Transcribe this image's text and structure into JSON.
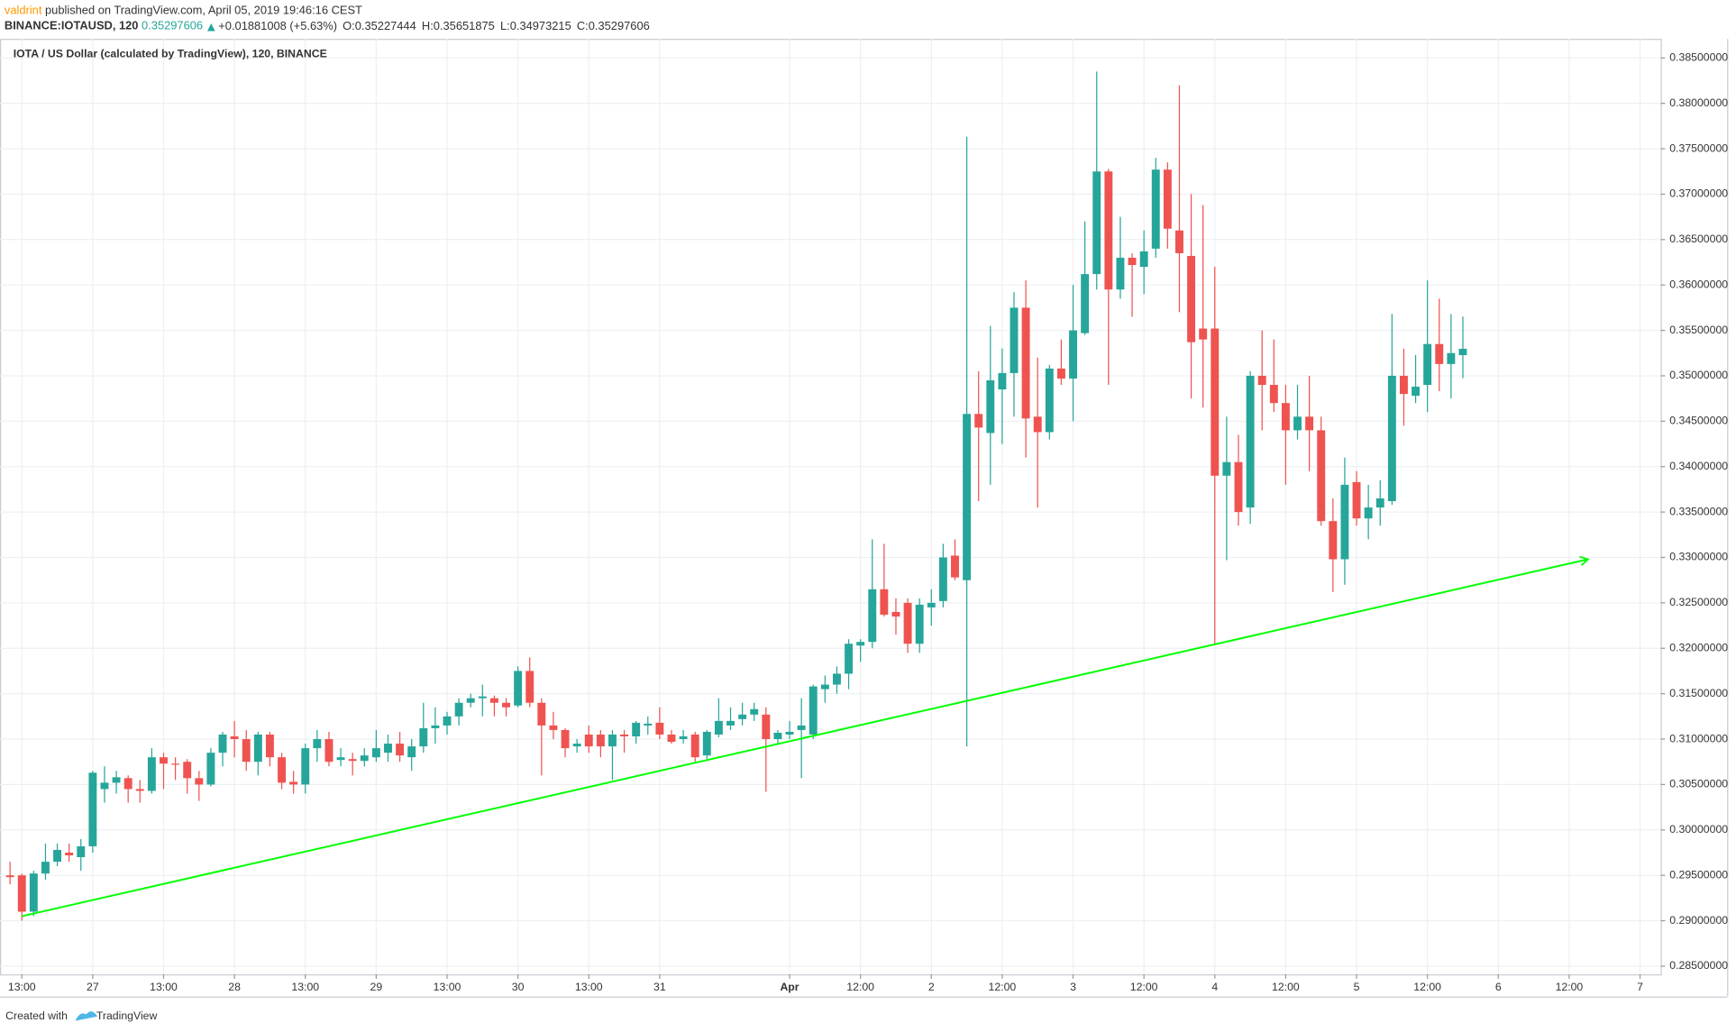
{
  "header": {
    "author": "valdrint",
    "published": "published on TradingView.com, April 05, 2019 19:46:16 CEST",
    "symbol": "BINANCE:IOTAUSD, 120",
    "last": "0.35297606",
    "change": "+0.01881008 (+5.63%)",
    "ohlc": [
      {
        "label": "O:",
        "value": "0.35227444"
      },
      {
        "label": "H:",
        "value": "0.35651875"
      },
      {
        "label": "L:",
        "value": "0.34973215"
      },
      {
        "label": "C:",
        "value": "0.35297606"
      }
    ]
  },
  "footer": {
    "created": "Created with",
    "brand": "TradingView"
  },
  "chart_data": {
    "type": "candlestick",
    "title": "IOTA / US Dollar (calculated by TradingView), 120, BINANCE",
    "up_color": "#26a69a",
    "down_color": "#ef5350",
    "grid": true,
    "xlim": [
      -0.85,
      139.75
    ],
    "ylim": [
      0.2841,
      0.3871
    ],
    "xticks": [
      {
        "value": 1,
        "label": "13:00"
      },
      {
        "value": 7,
        "label": "27"
      },
      {
        "value": 13,
        "label": "13:00"
      },
      {
        "value": 19,
        "label": "28"
      },
      {
        "value": 25,
        "label": "13:00"
      },
      {
        "value": 31,
        "label": "29"
      },
      {
        "value": 37,
        "label": "13:00"
      },
      {
        "value": 43,
        "label": "30"
      },
      {
        "value": 49,
        "label": "13:00"
      },
      {
        "value": 55,
        "label": "31"
      },
      {
        "value": 66,
        "label": "Apr"
      },
      {
        "value": 72,
        "label": "12:00"
      },
      {
        "value": 78,
        "label": "2"
      },
      {
        "value": 84,
        "label": "12:00"
      },
      {
        "value": 90,
        "label": "3"
      },
      {
        "value": 96,
        "label": "12:00"
      },
      {
        "value": 102,
        "label": "4"
      },
      {
        "value": 108,
        "label": "12:00"
      },
      {
        "value": 114,
        "label": "5"
      },
      {
        "value": 120,
        "label": "12:00"
      },
      {
        "value": 126,
        "label": "6"
      },
      {
        "value": 132,
        "label": "12:00"
      },
      {
        "value": 138,
        "label": "7"
      }
    ],
    "yticks": [
      {
        "value": 0.285,
        "label": "0.28500000"
      },
      {
        "value": 0.29,
        "label": "0.29000000"
      },
      {
        "value": 0.295,
        "label": "0.29500000"
      },
      {
        "value": 0.3,
        "label": "0.30000000"
      },
      {
        "value": 0.305,
        "label": "0.30500000"
      },
      {
        "value": 0.31,
        "label": "0.31000000"
      },
      {
        "value": 0.315,
        "label": "0.31500000"
      },
      {
        "value": 0.32,
        "label": "0.32000000"
      },
      {
        "value": 0.325,
        "label": "0.32500000"
      },
      {
        "value": 0.33,
        "label": "0.33000000"
      },
      {
        "value": 0.335,
        "label": "0.33500000"
      },
      {
        "value": 0.34,
        "label": "0.34000000"
      },
      {
        "value": 0.345,
        "label": "0.34500000"
      },
      {
        "value": 0.35,
        "label": "0.35000000"
      },
      {
        "value": 0.355,
        "label": "0.35500000"
      },
      {
        "value": 0.36,
        "label": "0.36000000"
      },
      {
        "value": 0.365,
        "label": "0.36500000"
      },
      {
        "value": 0.37,
        "label": "0.37000000"
      },
      {
        "value": 0.375,
        "label": "0.37500000"
      },
      {
        "value": 0.38,
        "label": "0.38000000"
      },
      {
        "value": 0.385,
        "label": "0.38500000"
      }
    ],
    "trendline": {
      "color": "#00ff00",
      "x": [
        1,
        133.6
      ],
      "y": [
        0.2905,
        0.3298
      ]
    },
    "open": [
      0.295,
      0.295,
      0.291,
      0.2952,
      0.2965,
      0.2975,
      0.297,
      0.2982,
      0.3045,
      0.3052,
      0.3057,
      0.3045,
      0.3043,
      0.308,
      0.3073,
      0.3075,
      0.3057,
      0.305,
      0.3085,
      0.3103,
      0.31,
      0.3075,
      0.3105,
      0.308,
      0.3053,
      0.305,
      0.309,
      0.31,
      0.3077,
      0.3078,
      0.3076,
      0.308,
      0.3085,
      0.3095,
      0.308,
      0.3092,
      0.3112,
      0.3115,
      0.3125,
      0.314,
      0.3145,
      0.3145,
      0.314,
      0.3137,
      0.3175,
      0.314,
      0.3115,
      0.311,
      0.3092,
      0.3105,
      0.3105,
      0.3092,
      0.3105,
      0.3103,
      0.3115,
      0.3118,
      0.3105,
      0.31,
      0.3105,
      0.3082,
      0.3105,
      0.3115,
      0.3122,
      0.3127,
      0.3127,
      0.31,
      0.3105,
      0.311,
      0.3105,
      0.3155,
      0.316,
      0.3172,
      0.3203,
      0.3207,
      0.3265,
      0.324,
      0.325,
      0.3205,
      0.3245,
      0.3252,
      0.3302,
      0.3275,
      0.3458,
      0.3437,
      0.3485,
      0.3503,
      0.3575,
      0.3455,
      0.3438,
      0.3508,
      0.3497,
      0.3547,
      0.3612,
      0.3725,
      0.3595,
      0.363,
      0.362,
      0.364,
      0.3727,
      0.366,
      0.3632,
      0.3552,
      0.3552,
      0.339,
      0.3405,
      0.3355,
      0.35,
      0.349,
      0.347,
      0.344,
      0.3455,
      0.344,
      0.334,
      0.3298,
      0.3383,
      0.3343,
      0.3355,
      0.3362,
      0.35,
      0.3478,
      0.349,
      0.3535,
      0.3513,
      0.35227444
    ],
    "high": [
      0.2965,
      0.2952,
      0.2955,
      0.2985,
      0.2985,
      0.2985,
      0.299,
      0.3065,
      0.307,
      0.3065,
      0.306,
      0.3055,
      0.309,
      0.3085,
      0.308,
      0.3078,
      0.3065,
      0.309,
      0.3108,
      0.312,
      0.311,
      0.3108,
      0.3108,
      0.3085,
      0.3065,
      0.3095,
      0.311,
      0.3108,
      0.309,
      0.3085,
      0.309,
      0.311,
      0.3105,
      0.3108,
      0.31,
      0.314,
      0.3135,
      0.313,
      0.3145,
      0.315,
      0.316,
      0.3148,
      0.3145,
      0.318,
      0.319,
      0.3145,
      0.313,
      0.3112,
      0.31,
      0.3115,
      0.311,
      0.311,
      0.311,
      0.312,
      0.3125,
      0.3135,
      0.311,
      0.311,
      0.3108,
      0.311,
      0.3145,
      0.3135,
      0.314,
      0.314,
      0.3135,
      0.311,
      0.312,
      0.3145,
      0.316,
      0.317,
      0.318,
      0.321,
      0.321,
      0.332,
      0.3315,
      0.3255,
      0.3255,
      0.3255,
      0.3265,
      0.3315,
      0.332,
      0.3763,
      0.3505,
      0.3555,
      0.353,
      0.3592,
      0.3605,
      0.352,
      0.3512,
      0.354,
      0.36,
      0.367,
      0.3835,
      0.3728,
      0.3675,
      0.3635,
      0.366,
      0.374,
      0.3735,
      0.382,
      0.37,
      0.3688,
      0.362,
      0.3455,
      0.3435,
      0.3505,
      0.355,
      0.354,
      0.349,
      0.349,
      0.35,
      0.3455,
      0.3365,
      0.341,
      0.3395,
      0.338,
      0.3385,
      0.3568,
      0.353,
      0.3523,
      0.3605,
      0.3585,
      0.3568,
      0.35651875
    ],
    "low": [
      0.294,
      0.29,
      0.2905,
      0.2945,
      0.296,
      0.2965,
      0.2955,
      0.2975,
      0.303,
      0.304,
      0.303,
      0.303,
      0.304,
      0.3045,
      0.3055,
      0.304,
      0.3032,
      0.3048,
      0.307,
      0.308,
      0.3065,
      0.306,
      0.307,
      0.3045,
      0.304,
      0.304,
      0.3075,
      0.307,
      0.307,
      0.306,
      0.307,
      0.3075,
      0.3075,
      0.3075,
      0.3065,
      0.3085,
      0.3095,
      0.3105,
      0.3115,
      0.3135,
      0.3125,
      0.3125,
      0.3125,
      0.3135,
      0.3135,
      0.306,
      0.31,
      0.308,
      0.3085,
      0.3085,
      0.308,
      0.3055,
      0.3085,
      0.3095,
      0.3105,
      0.31,
      0.3095,
      0.3095,
      0.3075,
      0.3078,
      0.3102,
      0.311,
      0.3115,
      0.312,
      0.3042,
      0.3095,
      0.31,
      0.3057,
      0.31,
      0.314,
      0.315,
      0.3155,
      0.3185,
      0.32,
      0.3235,
      0.3215,
      0.3195,
      0.3195,
      0.3225,
      0.3245,
      0.3275,
      0.3092,
      0.3362,
      0.338,
      0.3425,
      0.3455,
      0.341,
      0.3355,
      0.343,
      0.349,
      0.345,
      0.3545,
      0.3595,
      0.349,
      0.3585,
      0.3565,
      0.359,
      0.363,
      0.364,
      0.357,
      0.3475,
      0.3465,
      0.3205,
      0.3297,
      0.3335,
      0.3337,
      0.344,
      0.346,
      0.338,
      0.343,
      0.3395,
      0.3335,
      0.3262,
      0.327,
      0.3335,
      0.332,
      0.3335,
      0.3358,
      0.3445,
      0.347,
      0.346,
      0.3483,
      0.3475,
      0.34973215
    ],
    "close": [
      0.2948,
      0.291,
      0.2952,
      0.2965,
      0.2978,
      0.2972,
      0.2982,
      0.3063,
      0.3052,
      0.3058,
      0.3045,
      0.3043,
      0.308,
      0.3073,
      0.3072,
      0.3057,
      0.305,
      0.3085,
      0.3105,
      0.31,
      0.3075,
      0.3105,
      0.308,
      0.3052,
      0.305,
      0.309,
      0.31,
      0.3075,
      0.308,
      0.3076,
      0.3082,
      0.309,
      0.3095,
      0.3082,
      0.3092,
      0.3112,
      0.3115,
      0.3125,
      0.314,
      0.3145,
      0.3147,
      0.314,
      0.3135,
      0.3175,
      0.314,
      0.3115,
      0.311,
      0.309,
      0.3095,
      0.3092,
      0.3092,
      0.3105,
      0.3103,
      0.3118,
      0.3117,
      0.3105,
      0.3097,
      0.3103,
      0.308,
      0.3108,
      0.312,
      0.312,
      0.3127,
      0.3133,
      0.31,
      0.3107,
      0.3108,
      0.3115,
      0.3158,
      0.316,
      0.3172,
      0.3205,
      0.3207,
      0.3265,
      0.3237,
      0.3235,
      0.3205,
      0.3248,
      0.325,
      0.33,
      0.3278,
      0.3458,
      0.3443,
      0.3495,
      0.3503,
      0.3575,
      0.3453,
      0.3438,
      0.3508,
      0.3497,
      0.355,
      0.3612,
      0.3725,
      0.3595,
      0.363,
      0.3622,
      0.3637,
      0.3727,
      0.3662,
      0.3635,
      0.3537,
      0.354,
      0.339,
      0.3405,
      0.335,
      0.35,
      0.349,
      0.347,
      0.344,
      0.3455,
      0.344,
      0.334,
      0.3298,
      0.338,
      0.3343,
      0.3355,
      0.3365,
      0.35,
      0.348,
      0.3488,
      0.3535,
      0.3513,
      0.3525,
      0.35297606
    ]
  }
}
